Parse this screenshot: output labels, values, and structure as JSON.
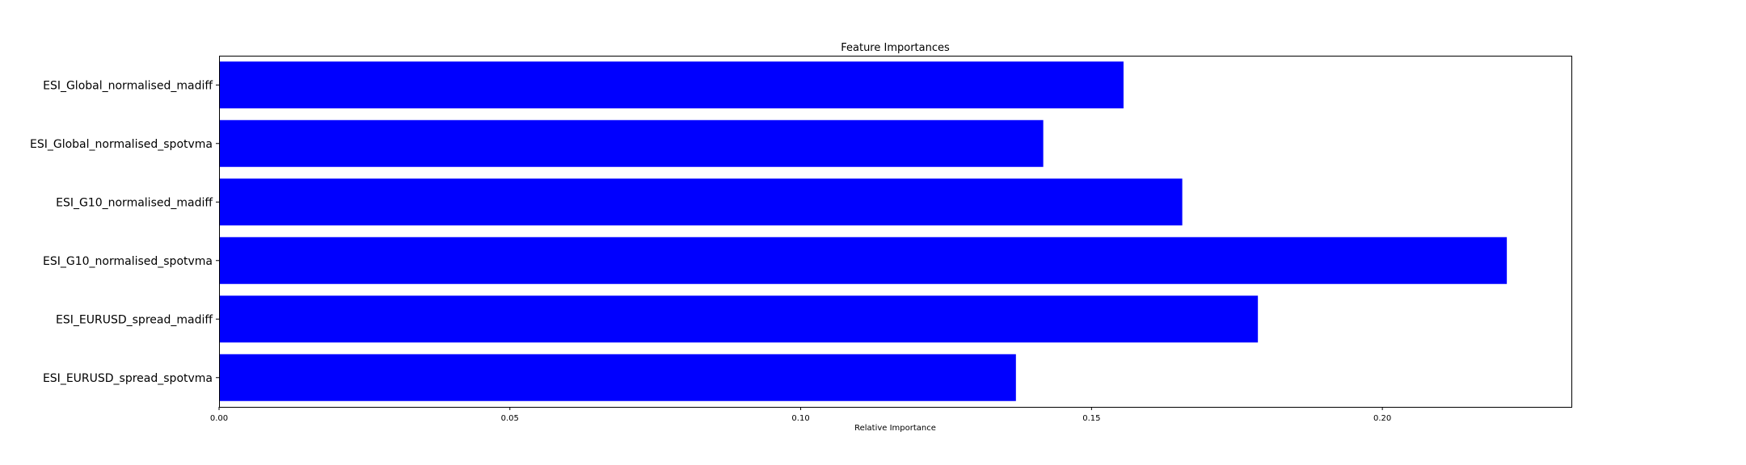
{
  "chart_data": {
    "type": "bar",
    "orientation": "horizontal",
    "title": "Feature Importances",
    "xlabel": "Relative Importance",
    "ylabel": "",
    "xlim": [
      0,
      0.2325
    ],
    "xticks": [
      0.0,
      0.05,
      0.1,
      0.15,
      0.2
    ],
    "xtick_labels": [
      "0.00",
      "0.05",
      "0.10",
      "0.15",
      "0.20"
    ],
    "categories": [
      "ESI_EURUSD_spread_spotvma",
      "ESI_EURUSD_spread_madiff",
      "ESI_G10_normalised_spotvma",
      "ESI_G10_normalised_madiff",
      "ESI_Global_normalised_spotvma",
      "ESI_Global_normalised_madiff"
    ],
    "values": [
      0.137,
      0.1786,
      0.2214,
      0.1656,
      0.1417,
      0.1555
    ],
    "bar_color": "#0000ff",
    "grid": false,
    "legend": "none"
  }
}
